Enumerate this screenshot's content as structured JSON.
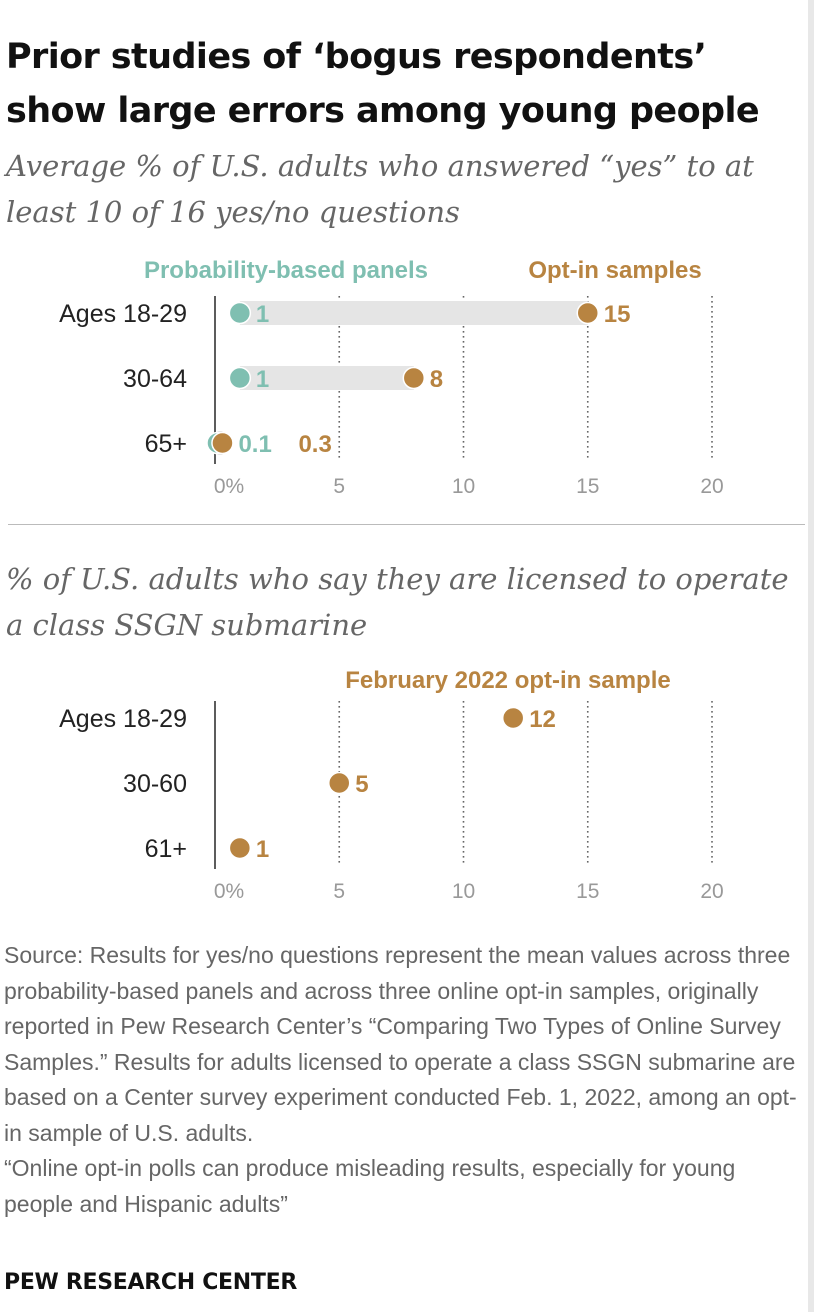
{
  "title": "Prior studies of ‘bogus respondents’ show large errors among young people",
  "chart_data": [
    {
      "type": "dot",
      "subtitle": "Average % of U.S. adults who answered “yes” to at least 10 of 16 yes/no questions",
      "categories": [
        "Ages 18-29",
        "30-64",
        "65+"
      ],
      "series": [
        {
          "name": "Probability-based panels",
          "color": "#7fbfb1",
          "values": [
            1,
            1,
            0.1
          ],
          "labels": [
            "1",
            "1",
            "0.1"
          ]
        },
        {
          "name": "Opt-in samples",
          "color": "#b88441",
          "values": [
            15,
            8,
            0.3
          ],
          "labels": [
            "15",
            "8",
            "0.3"
          ]
        }
      ],
      "xlim": [
        0,
        20
      ],
      "ticks": [
        0,
        5,
        10,
        15,
        20
      ],
      "tick_labels": [
        "0%",
        "5",
        "10",
        "15",
        "20"
      ],
      "connector": true
    },
    {
      "type": "dot",
      "subtitle": "% of U.S. adults who say they are licensed to operate a class SSGN submarine",
      "categories": [
        "Ages 18-29",
        "30-60",
        "61+"
      ],
      "series": [
        {
          "name": "February 2022 opt-in sample",
          "color": "#b88441",
          "values": [
            12,
            5,
            1
          ],
          "labels": [
            "12",
            "5",
            "1"
          ]
        }
      ],
      "xlim": [
        0,
        20
      ],
      "ticks": [
        0,
        5,
        10,
        15,
        20
      ],
      "tick_labels": [
        "0%",
        "5",
        "10",
        "15",
        "20"
      ],
      "connector": false
    }
  ],
  "source": [
    "Source: Results for yes/no questions represent the mean values across three probability-based panels and across three online opt-in samples, originally reported in Pew Research Center’s “Comparing Two Types of Online Survey Samples.” Results for adults licensed to operate a class SSGN submarine are based on a Center survey experiment conducted Feb. 1, 2022, among an opt-in sample of U.S. adults.",
    "“Online opt-in polls can produce misleading results, especially for young people and Hispanic adults”"
  ],
  "brand": "PEW RESEARCH CENTER"
}
